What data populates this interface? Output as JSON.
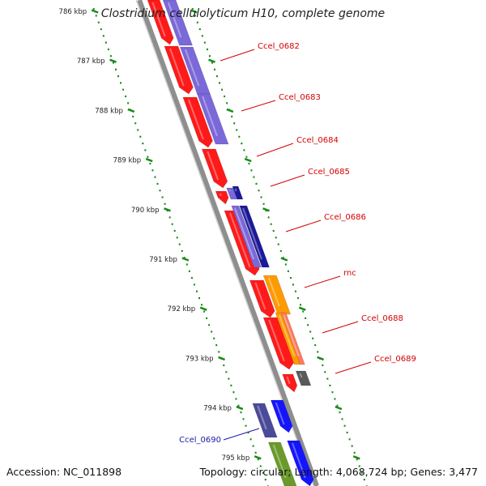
{
  "title": "Clostridium cellulolyticum H10, complete genome",
  "footer": {
    "accession": "Accession: NC_011898",
    "summary": "Topology: circular; Length: 4,068,724 bp; Genes: 3,477"
  },
  "colors": {
    "backbone": "#8e8e8e",
    "ruler": "#1a8a1a",
    "label_red": "#d40000",
    "label_blue": "#1a1aaa",
    "gene_red": "#ff1a1a",
    "gene_purple": "#7b68d9",
    "gene_navy": "#1a1a9a",
    "gene_orange": "#ff9a00",
    "gene_salmon": "#ff7a5a",
    "gene_gray": "#5a5a5a",
    "gene_blue": "#1414ff",
    "gene_slate": "#4a4a9a",
    "gene_olive": "#6a9a2a"
  },
  "ruler_ticks": [
    "786 kbp",
    "787 kbp",
    "788 kbp",
    "789 kbp",
    "790 kbp",
    "791 kbp",
    "792 kbp",
    "793 kbp",
    "794 kbp",
    "795 kbp"
  ],
  "gene_labels": [
    {
      "text": "Ccel_0682",
      "color": "label_red"
    },
    {
      "text": "Ccel_0683",
      "color": "label_red"
    },
    {
      "text": "Ccel_0684",
      "color": "label_red"
    },
    {
      "text": "Ccel_0685",
      "color": "label_red"
    },
    {
      "text": "Ccel_0686",
      "color": "label_red"
    },
    {
      "text": "rnc",
      "color": "label_red"
    },
    {
      "text": "Ccel_0688",
      "color": "label_red"
    },
    {
      "text": "Ccel_0689",
      "color": "label_red"
    },
    {
      "text": "Ccel_0690",
      "color": "label_blue"
    }
  ]
}
